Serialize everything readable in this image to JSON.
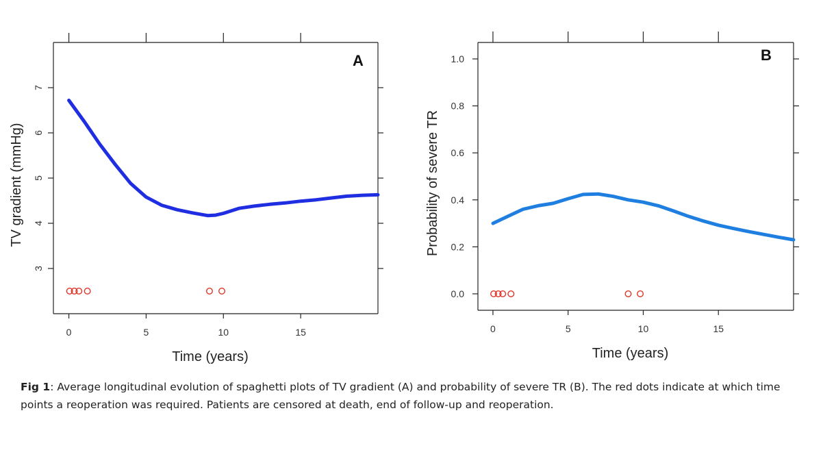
{
  "chart_data": [
    {
      "type": "line",
      "panel_label": "A",
      "xlabel": "Time (years)",
      "ylabel": "TV gradient (mmHg)",
      "xlim": [
        -1,
        20
      ],
      "ylim": [
        2,
        8
      ],
      "x_ticks": [
        0,
        5,
        10,
        15
      ],
      "y_ticks": [
        3,
        4,
        5,
        6,
        7
      ],
      "grid": false,
      "series": [
        {
          "color": "#1f2ee0",
          "x": [
            0,
            1,
            2,
            3,
            4,
            5,
            6,
            7,
            8,
            9,
            9.5,
            10,
            11,
            12,
            13,
            14,
            15,
            16,
            17,
            18,
            19,
            20
          ],
          "y": [
            6.72,
            6.25,
            5.75,
            5.3,
            4.88,
            4.58,
            4.4,
            4.3,
            4.23,
            4.17,
            4.18,
            4.22,
            4.33,
            4.38,
            4.42,
            4.45,
            4.49,
            4.52,
            4.56,
            4.6,
            4.62,
            4.63
          ]
        }
      ],
      "reoperation_points": {
        "color": "#e0362a",
        "x": [
          0.05,
          0.35,
          0.65,
          1.2,
          9.1,
          9.9
        ],
        "y": [
          2.5,
          2.5,
          2.5,
          2.5,
          2.5,
          2.5
        ]
      }
    },
    {
      "type": "line",
      "panel_label": "B",
      "xlabel": "Time (years)",
      "ylabel": "Probability of severe TR",
      "xlim": [
        -1,
        20
      ],
      "ylim": [
        -0.07,
        1.07
      ],
      "x_ticks": [
        0,
        5,
        10,
        15
      ],
      "y_ticks": [
        0.0,
        0.2,
        0.4,
        0.6,
        0.8,
        1.0
      ],
      "y_tick_labels": [
        "0.0",
        "0.2",
        "0.4",
        "0.6",
        "0.8",
        "1.0"
      ],
      "grid": false,
      "series": [
        {
          "color": "#1e7fe0",
          "x": [
            0,
            1,
            2,
            3,
            4,
            5,
            6,
            7,
            8,
            9,
            10,
            11,
            12,
            13,
            14,
            15,
            16,
            17,
            18,
            19,
            20
          ],
          "y": [
            0.3,
            0.33,
            0.36,
            0.375,
            0.385,
            0.405,
            0.423,
            0.425,
            0.415,
            0.4,
            0.39,
            0.375,
            0.353,
            0.33,
            0.31,
            0.292,
            0.278,
            0.265,
            0.253,
            0.241,
            0.23
          ]
        }
      ],
      "reoperation_points": {
        "color": "#e0362a",
        "x": [
          0.05,
          0.35,
          0.65,
          1.2,
          9.0,
          9.8
        ],
        "y": [
          0.0,
          0.0,
          0.0,
          0.0,
          0.0,
          0.0
        ]
      }
    }
  ],
  "caption": {
    "label": "Fig 1",
    "text": ": Average longitudinal evolution of spaghetti plots of TV gradient (A) and probability of severe TR (B). The red dots indicate at which time points a reoperation was required. Patients are censored at death, end of follow-up and reoperation."
  }
}
